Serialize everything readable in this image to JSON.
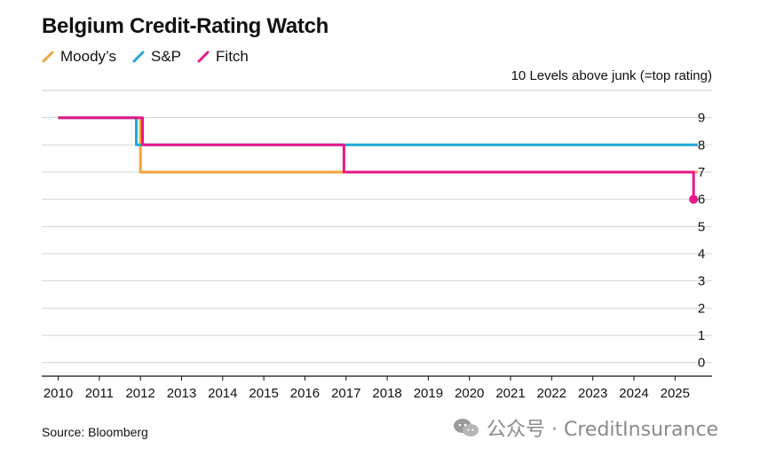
{
  "title": "Belgium Credit-Rating Watch",
  "source": "Source: Bloomberg",
  "watermark": "公众号 · CreditInsurance",
  "chart_data": {
    "type": "line",
    "title": "Belgium Credit-Rating Watch",
    "ylabel": "10 Levels above junk (=top rating)",
    "xlabel": "",
    "xlim": [
      2009.6,
      2025.9
    ],
    "ylim": [
      -0.5,
      10
    ],
    "yticks": [
      0,
      1,
      2,
      3,
      4,
      5,
      6,
      7,
      8,
      9
    ],
    "xticks": [
      2010,
      2011,
      2012,
      2013,
      2014,
      2015,
      2016,
      2017,
      2018,
      2019,
      2020,
      2021,
      2022,
      2023,
      2024,
      2025
    ],
    "grid": true,
    "legend_position": "top-left",
    "series": [
      {
        "name": "Moody’s",
        "color": "#f5a33a",
        "x": [
          2010.0,
          2012.0,
          2012.0,
          2025.55
        ],
        "y": [
          9,
          9,
          7,
          7
        ]
      },
      {
        "name": "S&P",
        "color": "#1fa8d6",
        "x": [
          2010.0,
          2011.9,
          2011.9,
          2025.55
        ],
        "y": [
          9,
          9,
          8,
          8
        ]
      },
      {
        "name": "Fitch",
        "color": "#e8178a",
        "x": [
          2010.0,
          2012.05,
          2012.05,
          2016.95,
          2016.95,
          2025.45,
          2025.45
        ],
        "y": [
          9,
          9,
          8,
          8,
          7,
          7,
          6
        ],
        "end_marker": true
      }
    ]
  }
}
